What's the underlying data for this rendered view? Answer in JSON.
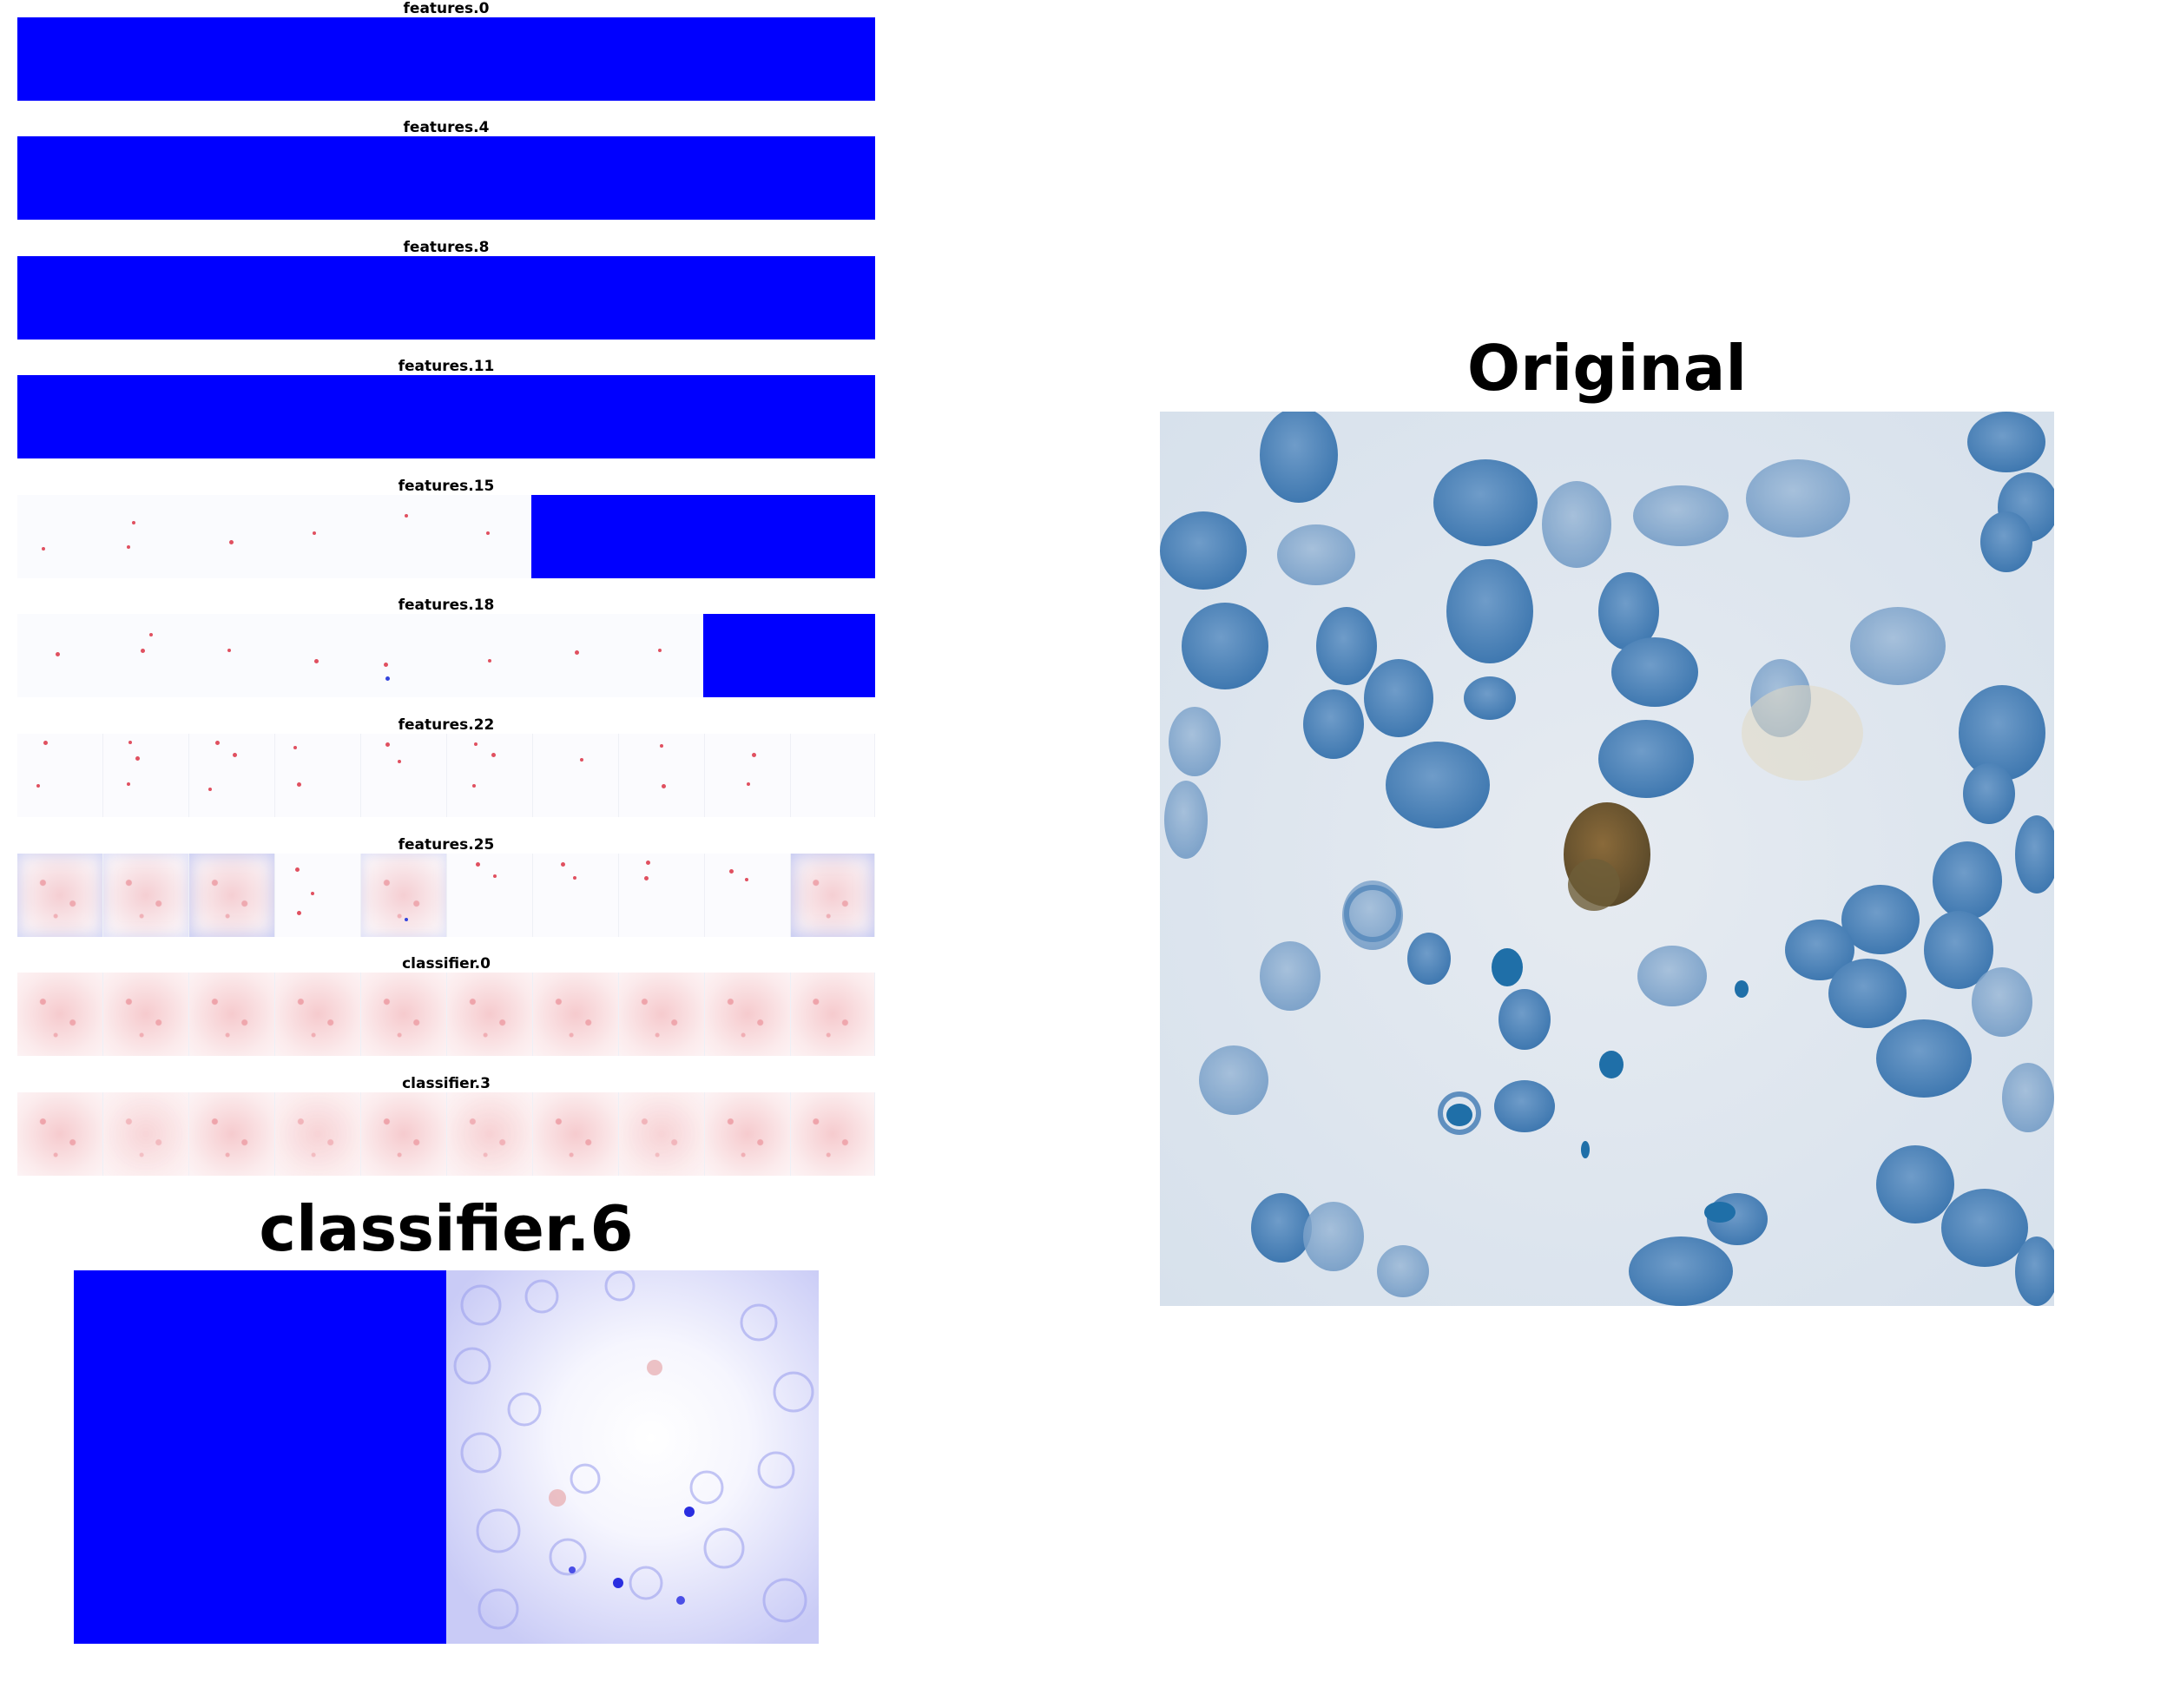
{
  "panels": {
    "f0": {
      "title": "features.0"
    },
    "f4": {
      "title": "features.4"
    },
    "f8": {
      "title": "features.8"
    },
    "f11": {
      "title": "features.11"
    },
    "f15": {
      "title": "features.15"
    },
    "f18": {
      "title": "features.18"
    },
    "f22": {
      "title": "features.22"
    },
    "f25": {
      "title": "features.25"
    },
    "c0": {
      "title": "classifier.0"
    },
    "c3": {
      "title": "classifier.3"
    },
    "c6": {
      "title": "classifier.6"
    }
  },
  "original": {
    "title": "Original"
  },
  "colors": {
    "saturated_blue": "#0000ff",
    "positive_red": "#e05060",
    "negative_blue": "#3344dd",
    "background": "#ffffff"
  }
}
